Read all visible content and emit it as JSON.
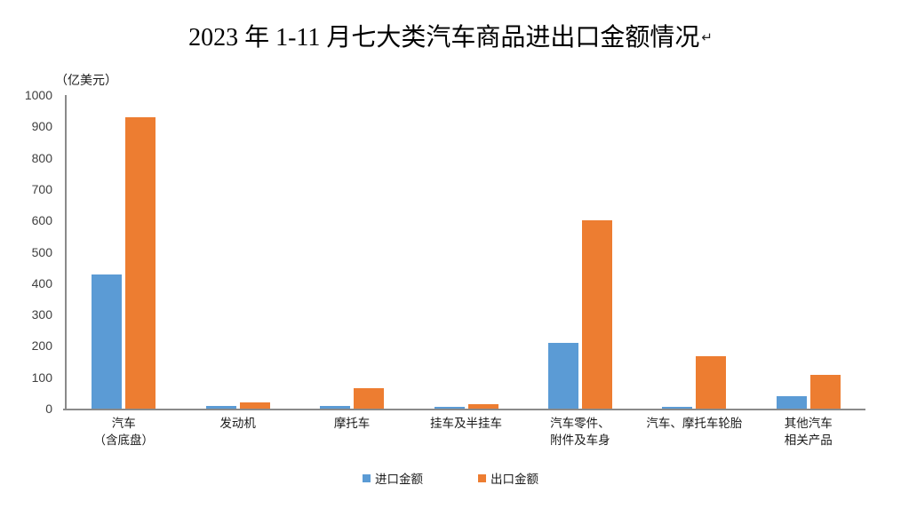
{
  "title": {
    "text": "2023 年 1-11 月七大类汽车商品进出口金额情况",
    "paragraph_mark": "↵"
  },
  "chart_data": {
    "type": "bar",
    "title": "2023 年 1-11 月七大类汽车商品进出口金额情况",
    "unit_label": "（亿美元）",
    "categories": [
      "汽车\n（含底盘）",
      "发动机",
      "摩托车",
      "挂车及半挂车",
      "汽车零件、\n附件及车身",
      "汽车、摩托车轮胎",
      "其他汽车\n相关产品"
    ],
    "series": [
      {
        "name": "进口金额",
        "color": "#5B9BD5",
        "values": [
          428,
          9,
          9,
          7,
          210,
          5,
          40
        ]
      },
      {
        "name": "出口金额",
        "color": "#ED7D31",
        "values": [
          928,
          20,
          64,
          15,
          600,
          168,
          107
        ]
      }
    ],
    "ylim": [
      0,
      1000
    ],
    "y_ticks": [
      0,
      100,
      200,
      300,
      400,
      500,
      600,
      700,
      800,
      900,
      1000
    ],
    "grid": false,
    "legend_position": "bottom",
    "colors": {
      "axis": "#8a8a8a",
      "tick_text": "#404040",
      "background": "#ffffff"
    }
  }
}
